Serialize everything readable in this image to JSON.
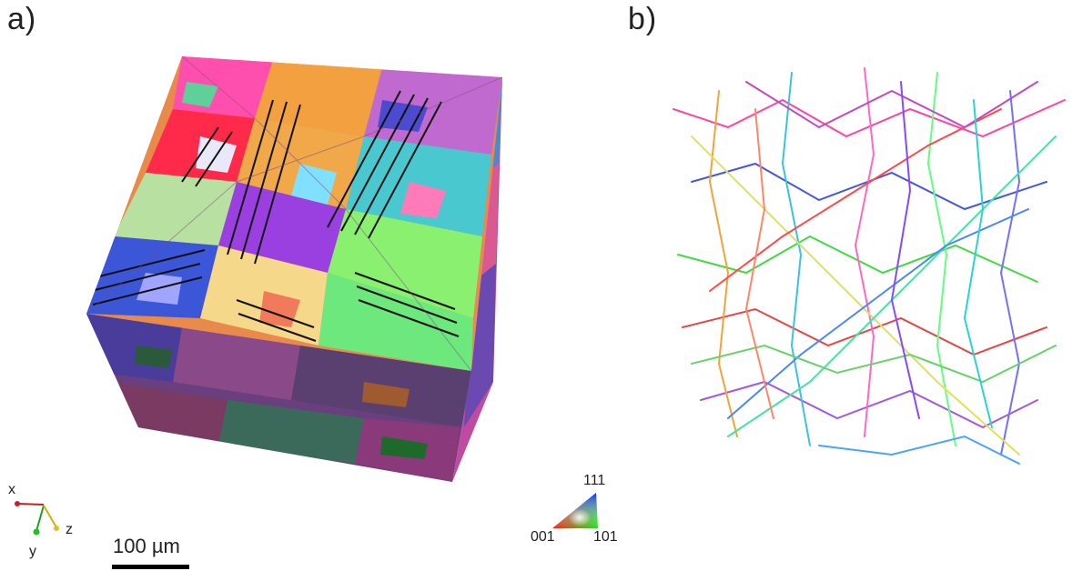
{
  "panels": {
    "a": {
      "label": "a)"
    },
    "b": {
      "label": "b)"
    }
  },
  "axes_triad": {
    "x": "x",
    "y": "y",
    "z": "z"
  },
  "scale_bar": {
    "label": "100 µm"
  },
  "ipf_key": {
    "top": "111",
    "left": "001",
    "right": "101"
  }
}
